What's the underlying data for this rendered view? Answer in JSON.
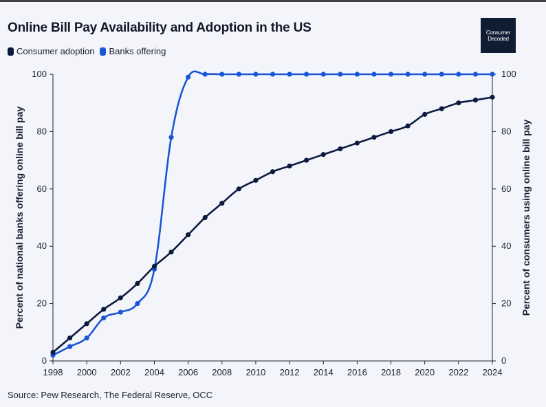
{
  "header": {
    "title": "Online Bill Pay Availability and Adoption in the US"
  },
  "logo": {
    "line1": "Consumer",
    "line2": "Decoded"
  },
  "source": "Source: Pew Research, The Federal Reserve, OCC",
  "colors": {
    "consumer": "#0c1a3f",
    "banks": "#1a56d6",
    "axis": "#1a1f33",
    "background": "#f4f5fa"
  },
  "chart_data": {
    "type": "line",
    "title": "Online Bill Pay Availability and Adoption in the US",
    "x": [
      1998,
      1999,
      2000,
      2001,
      2002,
      2003,
      2004,
      2005,
      2006,
      2007,
      2008,
      2009,
      2010,
      2011,
      2012,
      2013,
      2014,
      2015,
      2016,
      2017,
      2018,
      2019,
      2020,
      2021,
      2022,
      2023,
      2024
    ],
    "xticks": [
      1998,
      2000,
      2002,
      2004,
      2006,
      2008,
      2010,
      2012,
      2014,
      2016,
      2018,
      2020,
      2022,
      2024
    ],
    "yticks": [
      0,
      20,
      40,
      60,
      80,
      100
    ],
    "ylim": [
      0,
      100
    ],
    "ylabel_left": "Percent of national banks offering online bill pay",
    "ylabel_right": "Percent of consumers using online bill pay",
    "legend_position": "top-left",
    "series": [
      {
        "name": "Consumer adoption",
        "axis": "right",
        "values": [
          3,
          8,
          13,
          18,
          22,
          27,
          33,
          38,
          44,
          50,
          55,
          60,
          63,
          66,
          68,
          70,
          72,
          74,
          76,
          78,
          80,
          82,
          86,
          88,
          90,
          91,
          92
        ]
      },
      {
        "name": "Banks offering",
        "axis": "left",
        "values": [
          2,
          5,
          8,
          15,
          17,
          20,
          32,
          78,
          99,
          100,
          100,
          100,
          100,
          100,
          100,
          100,
          100,
          100,
          100,
          100,
          100,
          100,
          100,
          100,
          100,
          100,
          100
        ]
      }
    ]
  }
}
